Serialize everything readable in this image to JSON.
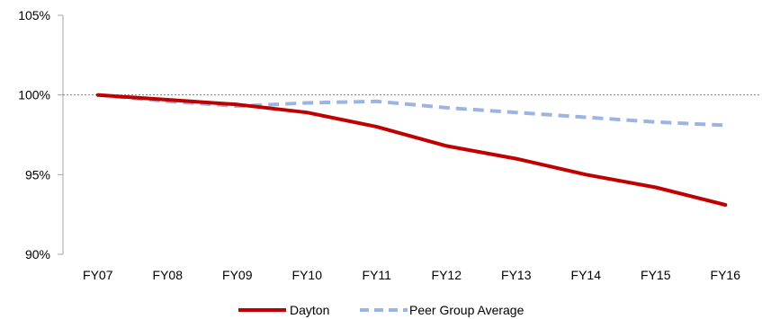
{
  "chart_data": {
    "type": "line",
    "categories": [
      "FY07",
      "FY08",
      "FY09",
      "FY10",
      "FY11",
      "FY12",
      "FY13",
      "FY14",
      "FY15",
      "FY16"
    ],
    "series": [
      {
        "name": "Dayton",
        "values": [
          100.0,
          99.7,
          99.4,
          98.9,
          98.0,
          96.8,
          96.0,
          95.0,
          94.2,
          93.1
        ],
        "color": "#C00000",
        "style": "solid"
      },
      {
        "name": "Peer Group Average",
        "values": [
          100.0,
          99.6,
          99.3,
          99.5,
          99.6,
          99.2,
          98.9,
          98.6,
          98.3,
          98.1
        ],
        "color": "#9DB3E2",
        "style": "dashed"
      }
    ],
    "yticks": [
      "90%",
      "95%",
      "100%",
      "105%"
    ],
    "yticks_values": [
      90,
      95,
      100,
      105
    ],
    "ylim": [
      90,
      105
    ],
    "reference_line": 100,
    "title": "",
    "xlabel": "",
    "ylabel": "",
    "legend_position": "bottom",
    "grid": false
  }
}
